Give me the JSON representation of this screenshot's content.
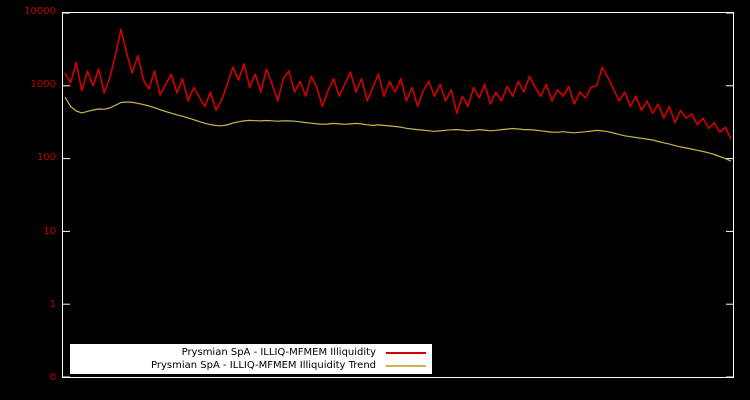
{
  "figure": {
    "background": "#000000",
    "plot_border_color": "#ffffff",
    "axis_label_color": "#c40000"
  },
  "chart_data": {
    "type": "line",
    "title": "",
    "xlabel": "",
    "ylabel": "",
    "y_scale": "log",
    "grid": false,
    "legend_position": "bottom-left-inside",
    "legend_background": "#ffffff",
    "legend_text_color": "#000000",
    "y_ticks": [
      {
        "label": "10000",
        "exp": 4
      },
      {
        "label": "1000",
        "exp": 3
      },
      {
        "label": "100",
        "exp": 2
      },
      {
        "label": "10",
        "exp": 1
      },
      {
        "label": "1",
        "exp": 0
      },
      {
        "label": "0",
        "exp": -1
      }
    ],
    "ylim_log_decades": [
      -1,
      4
    ],
    "series": [
      {
        "name": "Prysmian SpA - ILLIQ-MFMEM Illiquidity",
        "color": "#d40000",
        "width": 1.6,
        "data_name": "illiquidity-line",
        "values": [
          1500,
          1100,
          2100,
          850,
          1600,
          1000,
          1700,
          800,
          1300,
          2600,
          6000,
          2800,
          1500,
          2600,
          1200,
          900,
          1600,
          750,
          1050,
          1450,
          800,
          1250,
          620,
          950,
          700,
          520,
          820,
          460,
          640,
          1050,
          1800,
          1200,
          2000,
          950,
          1450,
          820,
          1700,
          1050,
          620,
          1250,
          1600,
          820,
          1150,
          720,
          1350,
          950,
          520,
          850,
          1250,
          720,
          1050,
          1550,
          820,
          1250,
          620,
          950,
          1450,
          720,
          1150,
          820,
          1250,
          620,
          950,
          520,
          850,
          1150,
          720,
          1050,
          620,
          880,
          420,
          720,
          520,
          950,
          680,
          1050,
          560,
          820,
          620,
          980,
          720,
          1150,
          820,
          1350,
          950,
          720,
          1050,
          620,
          880,
          720,
          980,
          560,
          820,
          680,
          950,
          1000,
          1800,
          1300,
          900,
          620,
          820,
          520,
          720,
          460,
          620,
          420,
          560,
          360,
          520,
          310,
          460,
          360,
          410,
          290,
          360,
          260,
          310,
          230,
          270,
          185
        ]
      },
      {
        "name": "Prysmian SpA - ILLIQ-MFMEM Illiquidity Trend",
        "color": "#c8b550",
        "width": 1.2,
        "data_name": "illiquidity-trend-line",
        "values": [
          700,
          520,
          450,
          425,
          445,
          465,
          480,
          475,
          495,
          540,
          590,
          600,
          592,
          575,
          552,
          530,
          500,
          470,
          443,
          420,
          400,
          382,
          362,
          342,
          322,
          305,
          292,
          285,
          282,
          290,
          308,
          320,
          330,
          335,
          332,
          330,
          334,
          331,
          326,
          329,
          330,
          326,
          320,
          312,
          306,
          300,
          296,
          299,
          304,
          300,
          296,
          300,
          304,
          299,
          291,
          286,
          290,
          286,
          281,
          276,
          270,
          261,
          255,
          250,
          246,
          241,
          237,
          240,
          245,
          249,
          250,
          246,
          241,
          245,
          250,
          246,
          241,
          245,
          250,
          254,
          259,
          255,
          250,
          250,
          246,
          241,
          236,
          231,
          230,
          234,
          230,
          226,
          230,
          234,
          239,
          244,
          240,
          234,
          225,
          215,
          206,
          200,
          195,
          190,
          185,
          180,
          172,
          165,
          158,
          151,
          145,
          140,
          135,
          130,
          125,
          120,
          114,
          107,
          100,
          92
        ]
      }
    ]
  }
}
